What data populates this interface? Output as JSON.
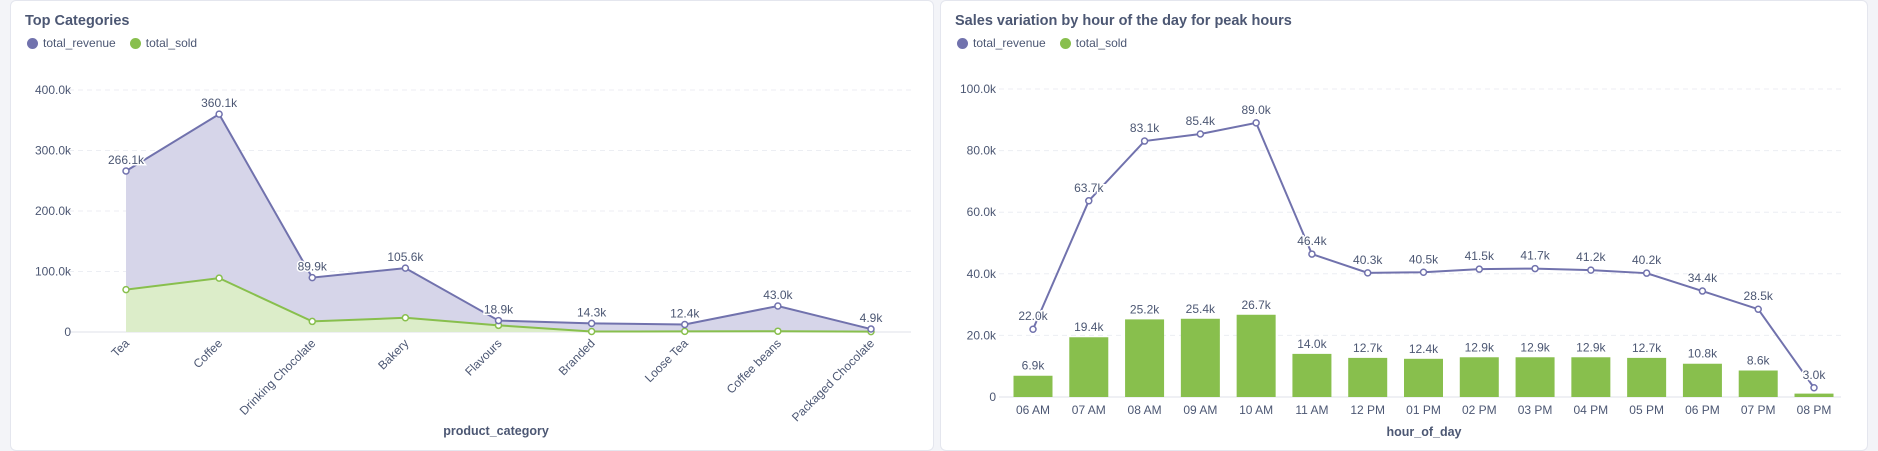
{
  "colors": {
    "revenue": "#7172ad",
    "revenue_fill": "#d6d5e9",
    "sold": "#88bf4d",
    "sold_fill": "#dcedc9",
    "axis_text": "#4c5773",
    "grid": "#eceef3"
  },
  "chart_data": [
    {
      "type": "area",
      "title": "Top Categories",
      "xlabel": "product_category",
      "ylabel": "",
      "legend": [
        "total_revenue",
        "total_sold"
      ],
      "legend_position": "top-left",
      "grid": true,
      "categories": [
        "Tea",
        "Coffee",
        "Drinking Chocolate",
        "Bakery",
        "Flavours",
        "Branded",
        "Loose Tea",
        "Coffee beans",
        "Packaged Chocolate"
      ],
      "series": [
        {
          "name": "total_revenue",
          "values": [
            266100,
            360100,
            89900,
            105600,
            18900,
            14300,
            12400,
            43000,
            4900
          ],
          "labels": [
            "266.1k",
            "360.1k",
            "89.9k",
            "105.6k",
            "18.9k",
            "14.3k",
            "12.4k",
            "43.0k",
            "4.9k"
          ]
        },
        {
          "name": "total_sold",
          "values": [
            70000,
            89000,
            17500,
            23500,
            11000,
            800,
            1000,
            1300,
            600
          ]
        }
      ],
      "ylim": [
        0,
        400000
      ],
      "yticks": [
        0,
        100000,
        200000,
        300000,
        400000
      ],
      "ytick_labels": [
        "0",
        "100.0k",
        "200.0k",
        "300.0k",
        "400.0k"
      ]
    },
    {
      "type": "bar",
      "title": "Sales variation by hour of the day for peak hours",
      "xlabel": "hour_of_day",
      "ylabel": "",
      "legend": [
        "total_revenue",
        "total_sold"
      ],
      "legend_position": "top-left",
      "grid": true,
      "categories": [
        "06 AM",
        "07 AM",
        "08 AM",
        "09 AM",
        "10 AM",
        "11 AM",
        "12 PM",
        "01 PM",
        "02 PM",
        "03 PM",
        "04 PM",
        "05 PM",
        "06 PM",
        "07 PM",
        "08 PM"
      ],
      "series": [
        {
          "name": "total_revenue",
          "type": "line",
          "values": [
            22000,
            63700,
            83100,
            85400,
            89000,
            46400,
            40300,
            40500,
            41500,
            41700,
            41200,
            40200,
            34400,
            28500,
            3000
          ],
          "labels": [
            "22.0k",
            "63.7k",
            "83.1k",
            "85.4k",
            "89.0k",
            "46.4k",
            "40.3k",
            "40.5k",
            "41.5k",
            "41.7k",
            "41.2k",
            "40.2k",
            "34.4k",
            "28.5k",
            "3.0k"
          ]
        },
        {
          "name": "total_sold",
          "type": "bar",
          "values": [
            6900,
            19400,
            25200,
            25400,
            26700,
            14000,
            12700,
            12400,
            12900,
            12900,
            12900,
            12700,
            10800,
            8600,
            1100
          ],
          "labels": [
            "6.9k",
            "19.4k",
            "25.2k",
            "25.4k",
            "26.7k",
            "14.0k",
            "12.7k",
            "12.4k",
            "12.9k",
            "12.9k",
            "12.9k",
            "12.7k",
            "10.8k",
            "8.6k",
            ""
          ]
        }
      ],
      "ylim": [
        0,
        100000
      ],
      "yticks": [
        0,
        20000,
        40000,
        60000,
        80000,
        100000
      ],
      "ytick_labels": [
        "0",
        "20.0k",
        "40.0k",
        "60.0k",
        "80.0k",
        "100.0k"
      ]
    }
  ]
}
